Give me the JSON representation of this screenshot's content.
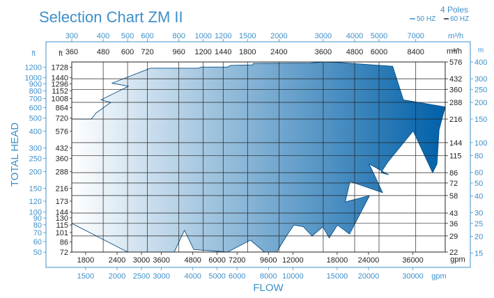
{
  "chart_data": {
    "type": "area",
    "title": "Selection Chart ZM II",
    "poles_label": "4 Poles",
    "legend": [
      {
        "label": "50 HZ",
        "color": "#3d8fc8"
      },
      {
        "label": "60 HZ",
        "color": "#222222"
      }
    ],
    "xlabel": "FLOW",
    "ylabel": "TOTAL HEAD",
    "x_axis_60hz_m3h": {
      "unit": "m³/h",
      "ticks": [
        360,
        480,
        600,
        720,
        960,
        1200,
        1440,
        1800,
        2400,
        3600,
        4800,
        6000,
        8400
      ]
    },
    "x_axis_50hz_m3h": {
      "unit": "m³/h",
      "ticks": [
        300,
        400,
        500,
        600,
        800,
        1000,
        1200,
        1500,
        2000,
        3000,
        4000,
        5000,
        7000
      ]
    },
    "x_axis_60hz_gpm": {
      "unit": "gpm",
      "ticks": [
        1800,
        2400,
        3000,
        3600,
        4800,
        6000,
        7200,
        9600,
        12000,
        18000,
        24000,
        36000
      ]
    },
    "x_axis_50hz_gpm": {
      "unit": "gpm",
      "ticks": [
        1500,
        2000,
        2500,
        3000,
        4000,
        5000,
        6000,
        8000,
        10000,
        15000,
        20000,
        30000
      ]
    },
    "y_axis_left_50hz_ft": {
      "unit": "ft",
      "ticks": [
        50,
        60,
        70,
        80,
        90,
        100,
        120,
        150,
        200,
        250,
        300,
        400,
        500,
        600,
        700,
        800,
        900,
        1000,
        1200
      ]
    },
    "y_axis_left_60hz_ft": {
      "unit": "ft",
      "ticks": [
        72,
        86,
        101,
        115,
        130,
        144,
        173,
        216,
        288,
        360,
        432,
        576,
        720,
        864,
        1008,
        1152,
        1296,
        1440,
        1728
      ]
    },
    "y_axis_right_60hz_m": {
      "unit": "m",
      "ticks": [
        22,
        29,
        36,
        43,
        58,
        72,
        86,
        115,
        144,
        216,
        288,
        360,
        432,
        576
      ]
    },
    "y_axis_right_50hz_m": {
      "unit": "m",
      "ticks": [
        15,
        20,
        25,
        30,
        40,
        50,
        60,
        80,
        100,
        150,
        200,
        250,
        300,
        400
      ]
    },
    "x_range_m3h_60hz": [
      360,
      11000
    ],
    "y_range_m_60hz": [
      22,
      576
    ],
    "x_scale": "log",
    "y_scale": "log",
    "gradient": [
      "#ffffff",
      "#0060a8"
    ],
    "coverage_outline_m3h_m_60hz": [
      [
        360,
        216
      ],
      [
        430,
        216
      ],
      [
        450,
        240
      ],
      [
        515,
        288
      ],
      [
        470,
        300
      ],
      [
        605,
        380
      ],
      [
        520,
        400
      ],
      [
        740,
        518
      ],
      [
        1150,
        518
      ],
      [
        1180,
        528
      ],
      [
        1500,
        528
      ],
      [
        1540,
        543
      ],
      [
        1880,
        548
      ],
      [
        1900,
        562
      ],
      [
        3200,
        565
      ],
      [
        3600,
        576
      ],
      [
        4200,
        570
      ],
      [
        6800,
        535
      ],
      [
        7500,
        300
      ],
      [
        11000,
        266
      ],
      [
        10400,
        180
      ],
      [
        10200,
        100
      ],
      [
        9800,
        86
      ],
      [
        8200,
        176
      ],
      [
        6500,
        103
      ],
      [
        6100,
        86
      ],
      [
        6550,
        83
      ],
      [
        5480,
        100
      ],
      [
        6200,
        61
      ],
      [
        4600,
        74
      ],
      [
        4400,
        52
      ],
      [
        5500,
        58
      ],
      [
        4580,
        30
      ],
      [
        4100,
        35
      ],
      [
        3800,
        28
      ],
      [
        3590,
        34
      ],
      [
        3250,
        29
      ],
      [
        3000,
        34
      ],
      [
        2750,
        35
      ],
      [
        2600,
        30
      ],
      [
        2350,
        22
      ],
      [
        2100,
        22
      ],
      [
        1850,
        27
      ],
      [
        1500,
        22
      ],
      [
        1100,
        23
      ],
      [
        1010,
        32
      ],
      [
        920,
        22
      ],
      [
        720,
        22
      ],
      [
        600,
        22
      ],
      [
        360,
        36
      ]
    ]
  }
}
